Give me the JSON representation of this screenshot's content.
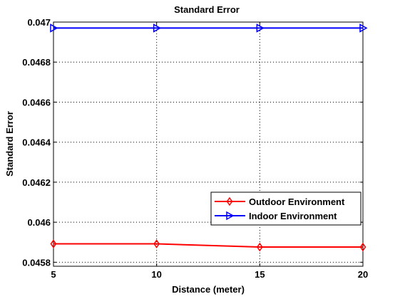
{
  "chart_data": {
    "type": "line",
    "title": "Standard Error",
    "xlabel": "Distance (meter)",
    "ylabel": "Standard Error",
    "xlim": [
      5,
      20
    ],
    "ylim": [
      0.04578,
      0.047
    ],
    "x": [
      5,
      10,
      15,
      20
    ],
    "xticks": [
      5,
      10,
      15,
      20
    ],
    "xtick_labels": [
      "5",
      "10",
      "15",
      "20"
    ],
    "yticks": [
      0.0458,
      0.046,
      0.0462,
      0.0464,
      0.0466,
      0.0468,
      0.047
    ],
    "ytick_labels": [
      "0.0458",
      "0.046",
      "0.0462",
      "0.0464",
      "0.0466",
      "0.0468",
      "0.047"
    ],
    "grid": true,
    "grid_style": "dotted",
    "legend_position": "lower-right",
    "series": [
      {
        "name": "Outdoor Environment",
        "values": [
          0.045892,
          0.045892,
          0.045876,
          0.045876
        ],
        "color": "#ff0000",
        "marker": "diamond"
      },
      {
        "name": "Indoor Environment",
        "values": [
          0.04697,
          0.04697,
          0.04697,
          0.04697
        ],
        "color": "#0000ff",
        "marker": "triangle-right"
      }
    ]
  }
}
